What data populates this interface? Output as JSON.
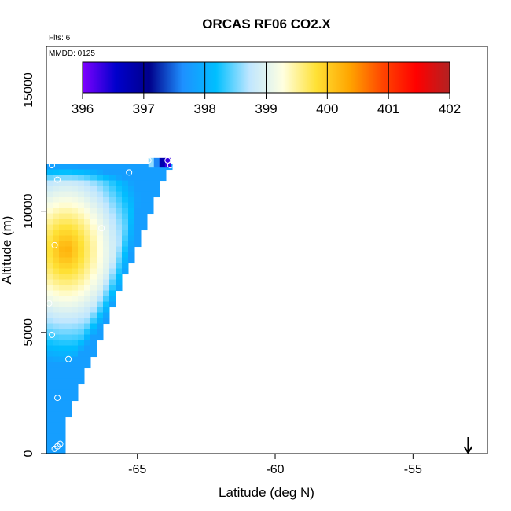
{
  "chart_data": {
    "type": "heatmap",
    "title": "ORCAS RF06 CO2.X",
    "xlabel": "Latitude (deg N)",
    "ylabel": "Altitude (m)",
    "xlim": [
      -68.3,
      -52.3
    ],
    "ylim": [
      0,
      16800
    ],
    "x_ticks": [
      -65,
      -60,
      -55
    ],
    "x_tick_labels": [
      "-65",
      "-60",
      "-55"
    ],
    "y_ticks": [
      0,
      5000,
      10000,
      15000
    ],
    "y_tick_labels": [
      "0",
      "5000",
      "10000",
      "15000"
    ],
    "annotations": {
      "flights": "Flts: 6",
      "date": "MMDD: 0125"
    },
    "colorbar": {
      "min": 396,
      "max": 402,
      "ticks": [
        396,
        397,
        398,
        399,
        400,
        401,
        402
      ],
      "tick_labels": [
        "396",
        "397",
        "398",
        "399",
        "400",
        "401",
        "402"
      ],
      "colors": [
        "#7f00ff",
        "#0000cc",
        "#00008b",
        "#1e90ff",
        "#00bfff",
        "#bfe6ff",
        "#ffffe0",
        "#ffe135",
        "#ffa500",
        "#ff4500",
        "#ff0000",
        "#b22222"
      ]
    },
    "field_description": {
      "region_lat_range": [
        -68.3,
        -63.8
      ],
      "region_alt_range": [
        0,
        12100
      ],
      "core_value": 400.3,
      "core_lat": -67.6,
      "core_alt": 8400,
      "edge_value": 398.0
    },
    "observation_points": [
      {
        "lat": -68.1,
        "alt": 11900
      },
      {
        "lat": -67.9,
        "alt": 11300
      },
      {
        "lat": -68.0,
        "alt": 8600
      },
      {
        "lat": -68.2,
        "alt": 6200
      },
      {
        "lat": -68.1,
        "alt": 4900
      },
      {
        "lat": -67.5,
        "alt": 3900
      },
      {
        "lat": -67.9,
        "alt": 2300
      },
      {
        "lat": -67.8,
        "alt": 400
      },
      {
        "lat": -68.0,
        "alt": 200
      },
      {
        "lat": -67.9,
        "alt": 300
      },
      {
        "lat": -66.3,
        "alt": 9300
      },
      {
        "lat": -65.3,
        "alt": 11600
      },
      {
        "lat": -64.6,
        "alt": 12100
      },
      {
        "lat": -63.9,
        "alt": 12100
      },
      {
        "lat": -63.8,
        "alt": 11900
      }
    ],
    "high_band": {
      "lat_range": [
        -64.6,
        -63.8
      ],
      "alt_range": [
        11800,
        12200
      ],
      "values": [
        398.6,
        397.6,
        396.8,
        396.3
      ]
    },
    "arrow_marker": {
      "lat": -53.0,
      "direction": "down"
    },
    "grid": false
  }
}
